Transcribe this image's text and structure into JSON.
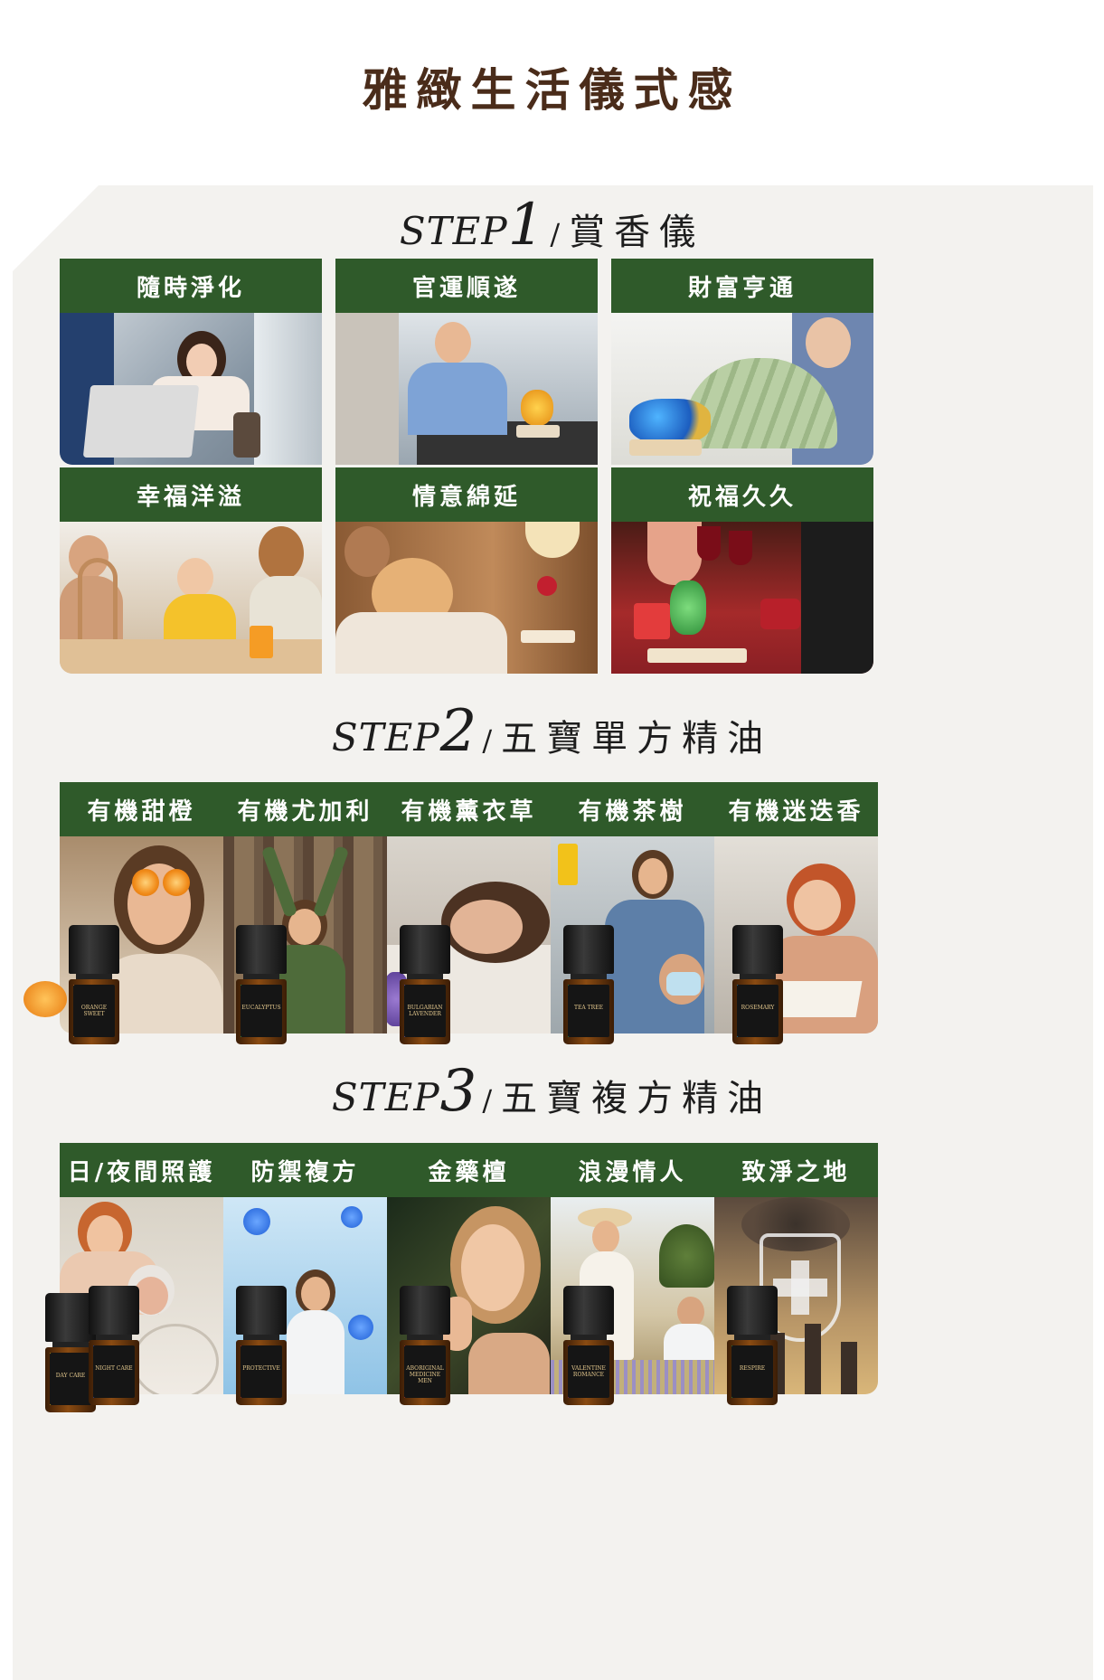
{
  "page_title": "雅緻生活儀式感",
  "steps": [
    {
      "word": "STEP",
      "num": "1",
      "slash": "/",
      "title": "賞香儀",
      "cards": [
        {
          "label": "隨時淨化",
          "scene": "woman on plane with laptop and diffuser"
        },
        {
          "label": "官運順遂",
          "scene": "businessman celebrating with golden ornament"
        },
        {
          "label": "財富亨通",
          "scene": "woman holding cash fan"
        },
        {
          "label": "幸福洋溢",
          "scene": "family at breakfast table with lamp"
        },
        {
          "label": "情意綿延",
          "scene": "couple embracing in bedroom with rose lamp"
        },
        {
          "label": "祝福久久",
          "scene": "toasting wine with lily ornament"
        }
      ]
    },
    {
      "word": "STEP",
      "num": "2",
      "slash": "/",
      "title": "五寶單方精油",
      "cards": [
        {
          "label": "有機甜橙",
          "bottle": [
            "ORANGE SWEET"
          ],
          "stripe": "#e2781b"
        },
        {
          "label": "有機尤加利",
          "bottle": [
            "EUCALYPTUS"
          ],
          "stripe": "#4fa046"
        },
        {
          "label": "有機薰衣草",
          "bottle": [
            "BULGARIAN",
            "LAVENDER"
          ],
          "stripe": "#7b5aa8"
        },
        {
          "label": "有機茶樹",
          "bottle": [
            "TEA TREE"
          ],
          "stripe": "#2f8f4e"
        },
        {
          "label": "有機迷迭香",
          "bottle": [
            "ROSEMARY"
          ],
          "stripe": "#2a90b8"
        }
      ]
    },
    {
      "word": "STEP",
      "num": "3",
      "slash": "/",
      "title": "五寶複方精油",
      "cards": [
        {
          "label": "日/夜間照護",
          "bottle": [
            "DAY CARE"
          ],
          "bottle2": [
            "NIGHT CARE"
          ],
          "stripe": "#e2b11b"
        },
        {
          "label": "防禦複方",
          "bottle": [
            "PROTECTIVE"
          ],
          "stripe": "#c0392b"
        },
        {
          "label": "金藥檀",
          "bottle": [
            "ABORIGINAL",
            "MEDICINE MEN"
          ],
          "stripe": "#c0392b"
        },
        {
          "label": "浪漫情人",
          "bottle": [
            "VALENTINE",
            "ROMANCE"
          ],
          "stripe": "#9b2d5a"
        },
        {
          "label": "致淨之地",
          "bottle": [
            "RESPIRE"
          ],
          "stripe": "#3f8f3a"
        }
      ]
    }
  ],
  "colors": {
    "title_brown": "#4a2c1a",
    "label_green": "#2f5a2a",
    "panel_bg": "#f3f2ef"
  }
}
